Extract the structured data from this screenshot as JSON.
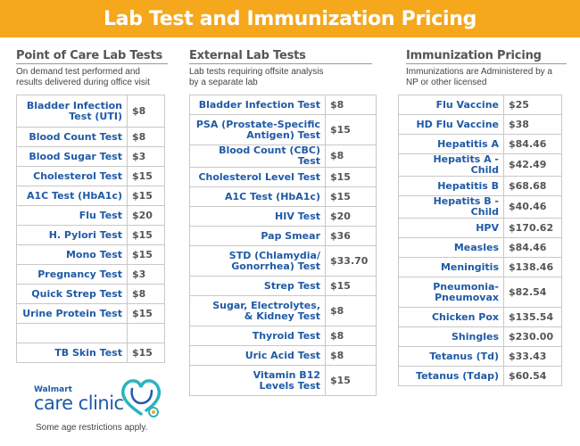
{
  "banner": {
    "title": "Lab Test and Immunization Pricing"
  },
  "sections": {
    "point_of_care": {
      "title": "Point of Care Lab Tests",
      "subtitle_line1": "On demand test performed and",
      "subtitle_line2": "results delivered during office visit",
      "rows": [
        {
          "name_lines": [
            "Bladder Infection",
            "Test (UTI)"
          ],
          "price": "$8"
        },
        {
          "name_lines": [
            "Blood Count Test"
          ],
          "price": "$8"
        },
        {
          "name_lines": [
            "Blood Sugar Test"
          ],
          "price": "$3"
        },
        {
          "name_lines": [
            "Cholesterol Test"
          ],
          "price": "$15"
        },
        {
          "name_lines": [
            "A1C Test (HbA1c)"
          ],
          "price": "$15"
        },
        {
          "name_lines": [
            "Flu Test"
          ],
          "price": "$20"
        },
        {
          "name_lines": [
            "H. Pylori Test"
          ],
          "price": "$15"
        },
        {
          "name_lines": [
            "Mono Test"
          ],
          "price": "$15"
        },
        {
          "name_lines": [
            "Pregnancy Test"
          ],
          "price": "$3"
        },
        {
          "name_lines": [
            "Quick Strep Test"
          ],
          "price": "$8"
        },
        {
          "name_lines": [
            "Urine Protein Test"
          ],
          "price": "$15"
        },
        {
          "name_lines": [
            ""
          ],
          "price": ""
        },
        {
          "name_lines": [
            "TB Skin Test"
          ],
          "price": "$15"
        }
      ]
    },
    "external": {
      "title": "External Lab Tests",
      "subtitle_line1": "Lab tests requiring offsite analysis",
      "subtitle_line2": "by a separate lab",
      "rows": [
        {
          "name_lines": [
            "Bladder Infection Test"
          ],
          "price": "$8"
        },
        {
          "name_lines": [
            "PSA (Prostate-Specific",
            "Antigen) Test"
          ],
          "price": "$15"
        },
        {
          "name_lines": [
            "Blood Count (CBC) Test"
          ],
          "price": "$8"
        },
        {
          "name_lines": [
            "Cholesterol Level Test"
          ],
          "price": "$15"
        },
        {
          "name_lines": [
            "A1C Test (HbA1c)"
          ],
          "price": "$15"
        },
        {
          "name_lines": [
            "HIV Test"
          ],
          "price": "$20"
        },
        {
          "name_lines": [
            "Pap Smear"
          ],
          "price": "$36"
        },
        {
          "name_lines": [
            "STD (Chlamydia/",
            "Gonorrhea) Test"
          ],
          "price": "$33.70"
        },
        {
          "name_lines": [
            "Strep Test"
          ],
          "price": "$15"
        },
        {
          "name_lines": [
            "Sugar, Electrolytes,",
            "& Kidney Test"
          ],
          "price": "$8"
        },
        {
          "name_lines": [
            "Thyroid Test"
          ],
          "price": "$8"
        },
        {
          "name_lines": [
            "Uric Acid Test"
          ],
          "price": "$8"
        },
        {
          "name_lines": [
            "Vitamin B12",
            "Levels Test"
          ],
          "price": "$15"
        }
      ]
    },
    "immunization": {
      "title": "Immunization Pricing",
      "subtitle_line1": "Immunizations are Administered by a",
      "subtitle_line2": "NP or other licensed",
      "rows": [
        {
          "name_lines": [
            "Flu Vaccine"
          ],
          "price": "$25"
        },
        {
          "name_lines": [
            "HD Flu Vaccine"
          ],
          "price": "$38"
        },
        {
          "name_lines": [
            "Hepatitis A"
          ],
          "price": "$84.46"
        },
        {
          "name_lines": [
            "Hepatits A - Child"
          ],
          "price": "$42.49"
        },
        {
          "name_lines": [
            "Hepatitis B"
          ],
          "price": "$68.68"
        },
        {
          "name_lines": [
            "Hepatits B - Child"
          ],
          "price": "$40.46"
        },
        {
          "name_lines": [
            "HPV"
          ],
          "price": "$170.62"
        },
        {
          "name_lines": [
            "Measles"
          ],
          "price": "$84.46"
        },
        {
          "name_lines": [
            "Meningitis"
          ],
          "price": "$138.46"
        },
        {
          "name_lines": [
            "Pneumonia-",
            "Pneumovax"
          ],
          "price": "$82.54"
        },
        {
          "name_lines": [
            "Chicken Pox"
          ],
          "price": "$135.54"
        },
        {
          "name_lines": [
            "Shingles"
          ],
          "price": "$230.00"
        },
        {
          "name_lines": [
            "Tetanus (Td)"
          ],
          "price": "$33.43"
        },
        {
          "name_lines": [
            "Tetanus (Tdap)"
          ],
          "price": "$60.54"
        }
      ]
    }
  },
  "logo": {
    "brand": "Walmart",
    "name": "care clinic",
    "icon": "stethoscope-heart-icon",
    "brand_color": "#1f5aa6",
    "accent_color": "#2bb3c0",
    "spark_color": "#f5a81c"
  },
  "footer": {
    "note": "Some age restrictions apply."
  },
  "colors": {
    "banner": "#f5a81c",
    "test_name": "#1f5aa6",
    "price": "#555555",
    "border": "#c8c8c8"
  }
}
